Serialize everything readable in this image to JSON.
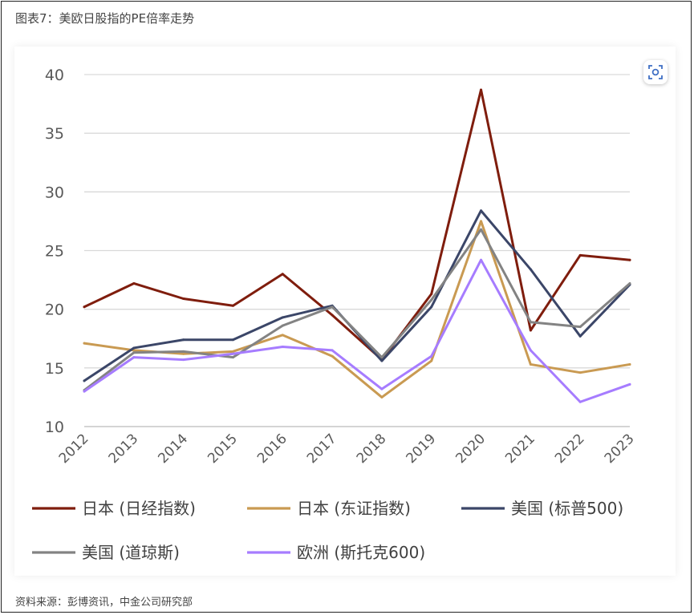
{
  "figure": {
    "title": "图表7：美欧日股指的PE倍率走势",
    "source": "资料来源：彭博资讯，中金公司研究部",
    "scan_icon": "scan-icon"
  },
  "chart_data": {
    "type": "line",
    "title": "",
    "xlabel": "",
    "ylabel": "",
    "x": [
      "2012",
      "2013",
      "2014",
      "2015",
      "2016",
      "2017",
      "2018",
      "2019",
      "2020",
      "2021",
      "2022",
      "2023"
    ],
    "ylim": [
      10,
      40
    ],
    "yticks": [
      10,
      15,
      20,
      25,
      30,
      35,
      40
    ],
    "grid": true,
    "legend_position": "bottom",
    "series": [
      {
        "name": "日本 (日经指数)",
        "color": "#7f1d0d",
        "values": [
          20.2,
          22.2,
          20.9,
          20.3,
          23.0,
          19.5,
          15.7,
          21.3,
          38.7,
          18.2,
          24.6,
          24.2
        ]
      },
      {
        "name": "日本 (东证指数)",
        "color": "#c99a52",
        "values": [
          17.1,
          16.5,
          16.2,
          16.4,
          17.8,
          16.0,
          12.5,
          15.6,
          27.5,
          15.3,
          14.6,
          15.3
        ]
      },
      {
        "name": "美国 (标普500)",
        "color": "#3b4668",
        "values": [
          13.9,
          16.7,
          17.4,
          17.4,
          19.3,
          20.3,
          15.6,
          20.2,
          28.4,
          23.4,
          17.7,
          22.1
        ]
      },
      {
        "name": "美国 (道琼斯)",
        "color": "#838383",
        "values": [
          13.1,
          16.3,
          16.4,
          15.9,
          18.6,
          20.2,
          15.9,
          20.8,
          26.8,
          18.9,
          18.5,
          22.2
        ]
      },
      {
        "name": "欧洲 (斯托克600)",
        "color": "#a67cff",
        "values": [
          13.0,
          15.9,
          15.7,
          16.2,
          16.8,
          16.5,
          13.2,
          16.0,
          24.2,
          16.5,
          12.1,
          13.6
        ]
      }
    ]
  }
}
